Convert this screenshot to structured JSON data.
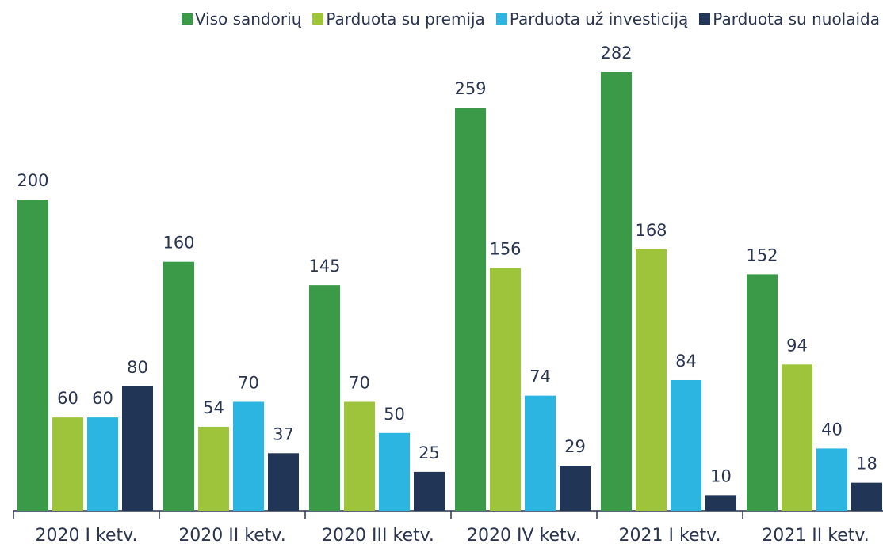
{
  "chart_data": {
    "type": "bar",
    "categories": [
      "2020 I ketv.",
      "2020 II ketv.",
      "2020 III ketv.",
      "2020 IV ketv.",
      "2021 I ketv.",
      "2021 II ketv."
    ],
    "series": [
      {
        "name": "Viso sandorių",
        "color": "#3a9a47",
        "values": [
          200,
          160,
          145,
          259,
          282,
          152
        ]
      },
      {
        "name": "Parduota su premija",
        "color": "#9dc43a",
        "values": [
          60,
          54,
          70,
          156,
          168,
          94
        ]
      },
      {
        "name": "Parduota už investiciją",
        "color": "#2cb5e0",
        "values": [
          60,
          70,
          50,
          74,
          84,
          40
        ]
      },
      {
        "name": "Parduota su nuolaida",
        "color": "#213557",
        "values": [
          80,
          37,
          25,
          29,
          10,
          18
        ]
      }
    ],
    "legend": "top-right"
  }
}
